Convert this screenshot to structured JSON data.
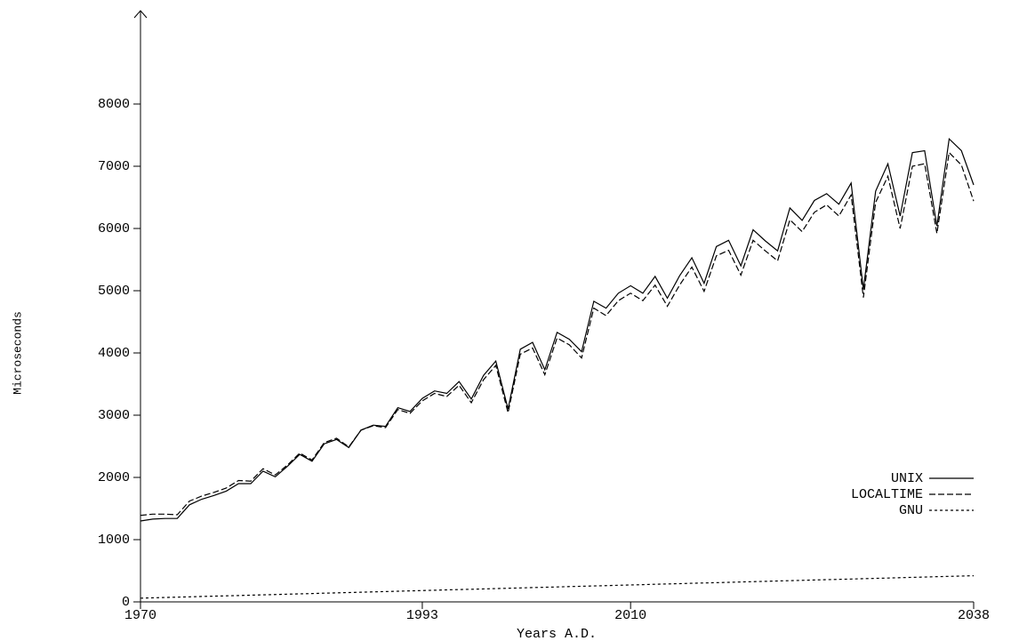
{
  "chart_data": {
    "type": "line",
    "xlabel": "Years A.D.",
    "ylabel": "Microseconds",
    "x": [
      1970,
      1971,
      1972,
      1973,
      1974,
      1975,
      1976,
      1977,
      1978,
      1979,
      1980,
      1981,
      1982,
      1983,
      1984,
      1985,
      1986,
      1987,
      1988,
      1989,
      1990,
      1991,
      1992,
      1993,
      1994,
      1995,
      1996,
      1997,
      1998,
      1999,
      2000,
      2001,
      2002,
      2003,
      2004,
      2005,
      2006,
      2007,
      2008,
      2009,
      2010,
      2011,
      2012,
      2013,
      2014,
      2015,
      2016,
      2017,
      2018,
      2019,
      2020,
      2021,
      2022,
      2023,
      2024,
      2025,
      2026,
      2027,
      2028,
      2029,
      2030,
      2031,
      2032,
      2033,
      2034,
      2035,
      2036,
      2037,
      2038
    ],
    "series": [
      {
        "name": "UNIX",
        "color": "#000000",
        "line_style": "solid",
        "values": [
          1300,
          1330,
          1340,
          1340,
          1560,
          1650,
          1710,
          1780,
          1900,
          1900,
          2100,
          2010,
          2180,
          2370,
          2260,
          2540,
          2610,
          2480,
          2760,
          2840,
          2820,
          3120,
          3060,
          3270,
          3390,
          3350,
          3540,
          3260,
          3640,
          3870,
          3100,
          4060,
          4170,
          3730,
          4330,
          4220,
          4020,
          4830,
          4720,
          4960,
          5080,
          4960,
          5230,
          4880,
          5240,
          5530,
          5120,
          5710,
          5810,
          5400,
          5980,
          5800,
          5640,
          6330,
          6130,
          6450,
          6560,
          6390,
          6730,
          5020,
          6600,
          7040,
          6200,
          7220,
          7250,
          6040,
          7440,
          7250,
          6700
        ]
      },
      {
        "name": "LOCALTIME",
        "color": "#000000",
        "line_style": "dashed",
        "values": [
          1390,
          1410,
          1410,
          1400,
          1620,
          1700,
          1760,
          1830,
          1950,
          1940,
          2140,
          2040,
          2200,
          2390,
          2280,
          2560,
          2630,
          2490,
          2760,
          2830,
          2800,
          3090,
          3030,
          3230,
          3350,
          3300,
          3480,
          3200,
          3570,
          3800,
          3040,
          3980,
          4080,
          3650,
          4240,
          4130,
          3920,
          4720,
          4600,
          4840,
          4960,
          4840,
          5090,
          4750,
          5090,
          5380,
          4990,
          5560,
          5650,
          5250,
          5810,
          5640,
          5480,
          6140,
          5950,
          6260,
          6380,
          6200,
          6540,
          4890,
          6420,
          6840,
          6000,
          7000,
          7040,
          5920,
          7220,
          7020,
          6440
        ]
      },
      {
        "name": "GNU",
        "color": "#000000",
        "line_style": "dotted",
        "values": [
          60,
          65,
          71,
          76,
          81,
          87,
          92,
          97,
          102,
          108,
          113,
          118,
          124,
          129,
          134,
          140,
          145,
          150,
          155,
          161,
          166,
          171,
          177,
          182,
          187,
          193,
          198,
          203,
          208,
          214,
          219,
          224,
          230,
          235,
          240,
          246,
          251,
          256,
          261,
          267,
          272,
          277,
          283,
          288,
          293,
          299,
          304,
          309,
          314,
          320,
          325,
          330,
          336,
          341,
          346,
          352,
          357,
          362,
          367,
          373,
          378,
          383,
          389,
          394,
          399,
          405,
          410,
          415,
          420
        ]
      }
    ],
    "xlim": [
      1970,
      2038
    ],
    "xticks": [
      1970,
      1993,
      2010,
      2038
    ],
    "ylim": [
      0,
      9500
    ],
    "yticks": [
      0,
      1000,
      2000,
      3000,
      4000,
      5000,
      6000,
      7000,
      8000
    ],
    "grid": false,
    "legend": "lower right"
  }
}
